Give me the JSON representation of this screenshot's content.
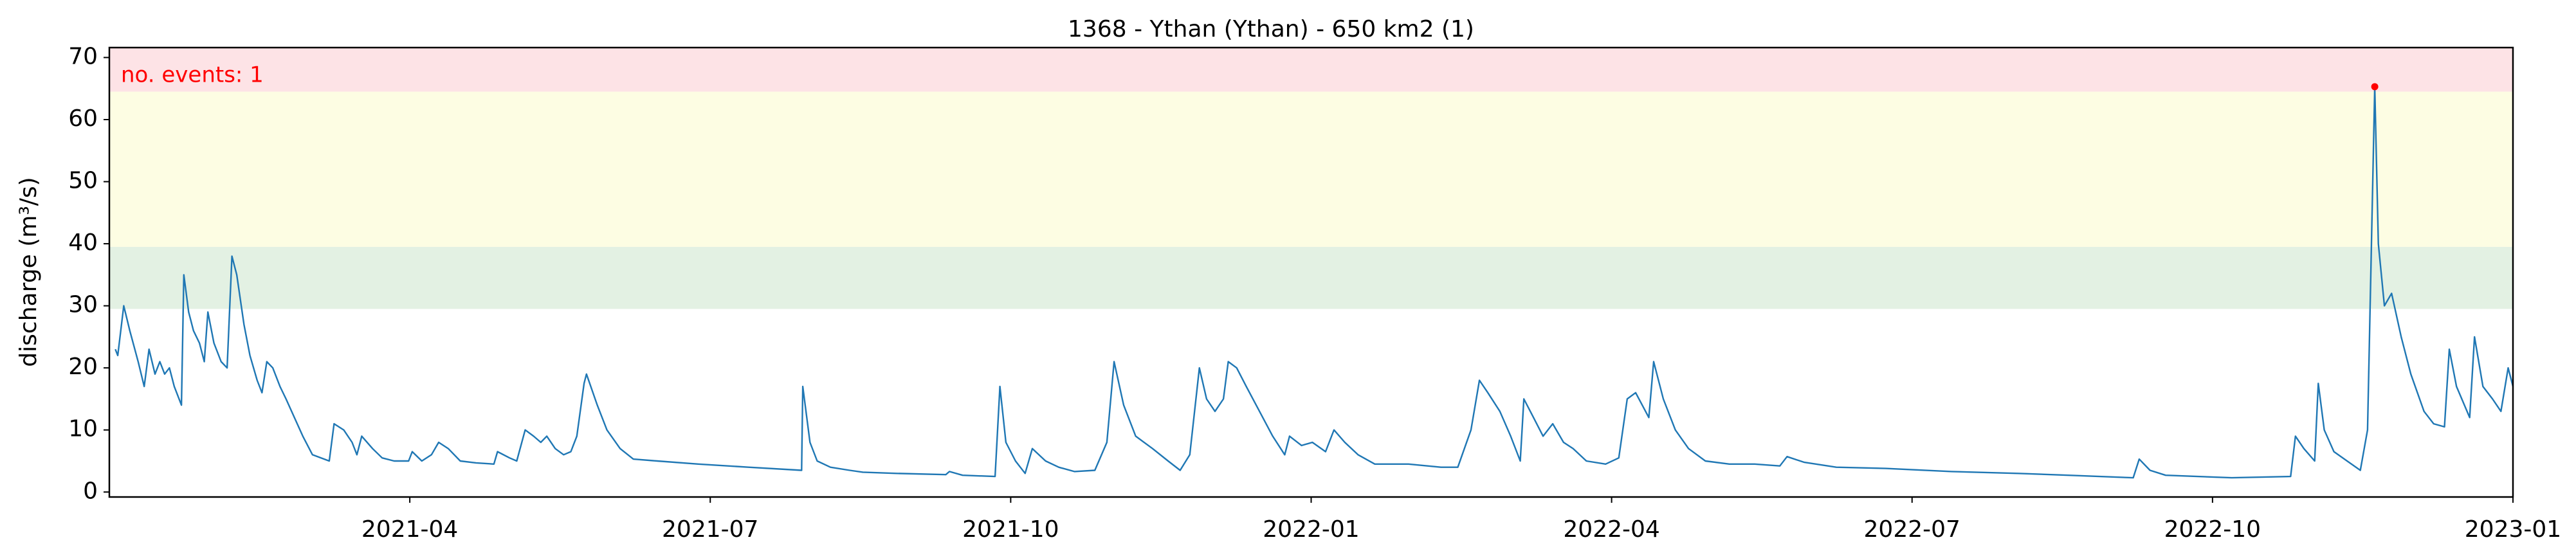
{
  "chart_data": {
    "type": "line",
    "title": "1368 - Ythan (Ythan) - 650 km2 (1)",
    "ylabel": "discharge (m³/s)",
    "annotation": "no. events: 1",
    "color": "#1f77b4",
    "x": [
      2021.005,
      2021.007,
      2021.012,
      2021.017,
      2021.024,
      2021.029,
      2021.033,
      2021.038,
      2021.042,
      2021.046,
      2021.05,
      2021.054,
      2021.06,
      2021.062,
      2021.066,
      2021.07,
      2021.075,
      2021.079,
      2021.082,
      2021.087,
      2021.093,
      2021.098,
      2021.102,
      2021.106,
      2021.112,
      2021.117,
      2021.123,
      2021.127,
      2021.131,
      2021.136,
      2021.142,
      2021.147,
      2021.154,
      2021.161,
      2021.169,
      2021.183,
      2021.187,
      2021.195,
      2021.202,
      2021.206,
      2021.21,
      2021.219,
      2021.227,
      2021.237,
      2021.249,
      2021.252,
      2021.26,
      2021.268,
      2021.274,
      2021.282,
      2021.292,
      2021.305,
      2021.32,
      2021.323,
      2021.333,
      2021.339,
      2021.346,
      2021.353,
      2021.359,
      2021.364,
      2021.371,
      2021.378,
      2021.384,
      2021.389,
      2021.395,
      2021.397,
      2021.406,
      2021.414,
      2021.425,
      2021.436,
      2021.456,
      2021.49,
      2021.532,
      2021.576,
      2021.577,
      2021.583,
      2021.589,
      2021.6,
      2021.616,
      2021.627,
      2021.655,
      2021.696,
      2021.699,
      2021.71,
      2021.737,
      2021.741,
      2021.746,
      2021.754,
      2021.762,
      2021.768,
      2021.779,
      2021.79,
      2021.803,
      2021.82,
      2021.83,
      2021.836,
      2021.844,
      2021.854,
      2021.868,
      2021.881,
      2021.891,
      2021.899,
      2021.907,
      2021.913,
      2021.92,
      2021.927,
      2021.931,
      2021.938,
      2021.946,
      2021.957,
      2021.968,
      2021.978,
      2021.982,
      2021.992,
      2022.001,
      2022.012,
      2022.019,
      2022.028,
      2022.039,
      2022.053,
      2022.081,
      2022.108,
      2022.122,
      2022.133,
      2022.14,
      2022.147,
      2022.157,
      2022.166,
      2022.174,
      2022.177,
      2022.185,
      2022.193,
      2022.201,
      2022.21,
      2022.218,
      2022.229,
      2022.245,
      2022.256,
      2022.263,
      2022.27,
      2022.281,
      2022.285,
      2022.293,
      2022.303,
      2022.314,
      2022.328,
      2022.348,
      2022.369,
      2022.39,
      2022.396,
      2022.41,
      2022.437,
      2022.478,
      2022.533,
      2022.588,
      2022.63,
      2022.684,
      2022.689,
      2022.698,
      2022.711,
      2022.766,
      2022.815,
      2022.819,
      2022.826,
      2022.835,
      2022.838,
      2022.843,
      2022.851,
      2022.862,
      2022.873,
      2022.879,
      2022.885,
      2022.888,
      2022.893,
      2022.899,
      2022.907,
      2022.915,
      2022.926,
      2022.934,
      2022.943,
      2022.947,
      2022.953,
      2022.964,
      2022.968,
      2022.975,
      2022.983,
      2022.99,
      2022.996,
      2023.0
    ],
    "values": [
      23,
      22,
      30,
      26,
      21,
      17,
      23,
      19,
      21,
      19,
      20,
      17,
      14,
      35,
      29,
      26,
      24,
      21,
      29,
      24,
      21,
      20,
      38,
      35,
      27,
      22,
      18,
      16,
      21,
      20,
      17,
      15,
      12,
      9,
      6,
      5,
      11,
      10,
      8,
      6,
      9,
      7,
      5.5,
      5,
      5,
      6.5,
      5,
      6,
      8,
      7,
      5,
      4.7,
      4.5,
      6.5,
      5.5,
      5,
      10,
      9,
      8,
      9,
      7,
      6,
      6.5,
      9,
      17.5,
      19,
      14,
      10,
      7,
      5.3,
      5,
      4.5,
      4,
      3.5,
      17,
      8,
      5,
      4,
      3.5,
      3.2,
      3,
      2.8,
      3.3,
      2.7,
      2.5,
      17,
      8,
      5,
      3,
      7,
      5,
      4,
      3.3,
      3.5,
      8,
      21,
      14,
      9,
      7,
      5,
      3.5,
      6,
      20,
      15,
      13,
      15,
      21,
      20,
      17,
      13,
      9,
      6,
      9,
      7.5,
      8,
      6.5,
      10,
      8,
      6,
      4.5,
      4.5,
      4,
      4,
      10,
      18,
      16,
      13,
      9,
      5,
      15,
      12,
      9,
      11,
      8,
      7,
      5,
      4.5,
      5.5,
      15,
      16,
      12,
      21,
      15,
      10,
      7,
      5,
      4.5,
      4.5,
      4.2,
      5.7,
      4.8,
      4,
      3.8,
      3.3,
      3,
      2.7,
      2.3,
      5.3,
      3.5,
      2.7,
      2.3,
      2.5,
      9,
      7,
      5,
      17.5,
      10,
      6.5,
      5,
      3.5,
      10,
      65.3,
      40,
      30,
      32,
      25,
      19,
      13,
      11,
      10.5,
      23,
      17,
      12,
      25,
      17,
      15,
      13,
      20,
      17
    ],
    "events": {
      "color": "#ff0000",
      "x": [
        2022.885
      ],
      "values": [
        65.3
      ]
    },
    "bands": [
      {
        "from": 29.5,
        "to": 39.5,
        "color": "#e3f1e3"
      },
      {
        "from": 39.5,
        "to": 64.5,
        "color": "#fdfde3"
      },
      {
        "from": 64.5,
        "to": 71.6,
        "color": "#fde3e6"
      }
    ],
    "xlim": [
      2021.0,
      2023.0
    ],
    "xticks": [
      {
        "value": 2021.25,
        "label": "2021-04"
      },
      {
        "value": 2021.5,
        "label": "2021-07"
      },
      {
        "value": 2021.75,
        "label": "2021-10"
      },
      {
        "value": 2022.0,
        "label": "2022-01"
      },
      {
        "value": 2022.25,
        "label": "2022-04"
      },
      {
        "value": 2022.5,
        "label": "2022-07"
      },
      {
        "value": 2022.75,
        "label": "2022-10"
      },
      {
        "value": 2023.0,
        "label": "2023-01"
      }
    ],
    "ylim": [
      -0.8,
      71.6
    ],
    "yticks": [
      0,
      10,
      20,
      30,
      40,
      50,
      60,
      70
    ]
  }
}
